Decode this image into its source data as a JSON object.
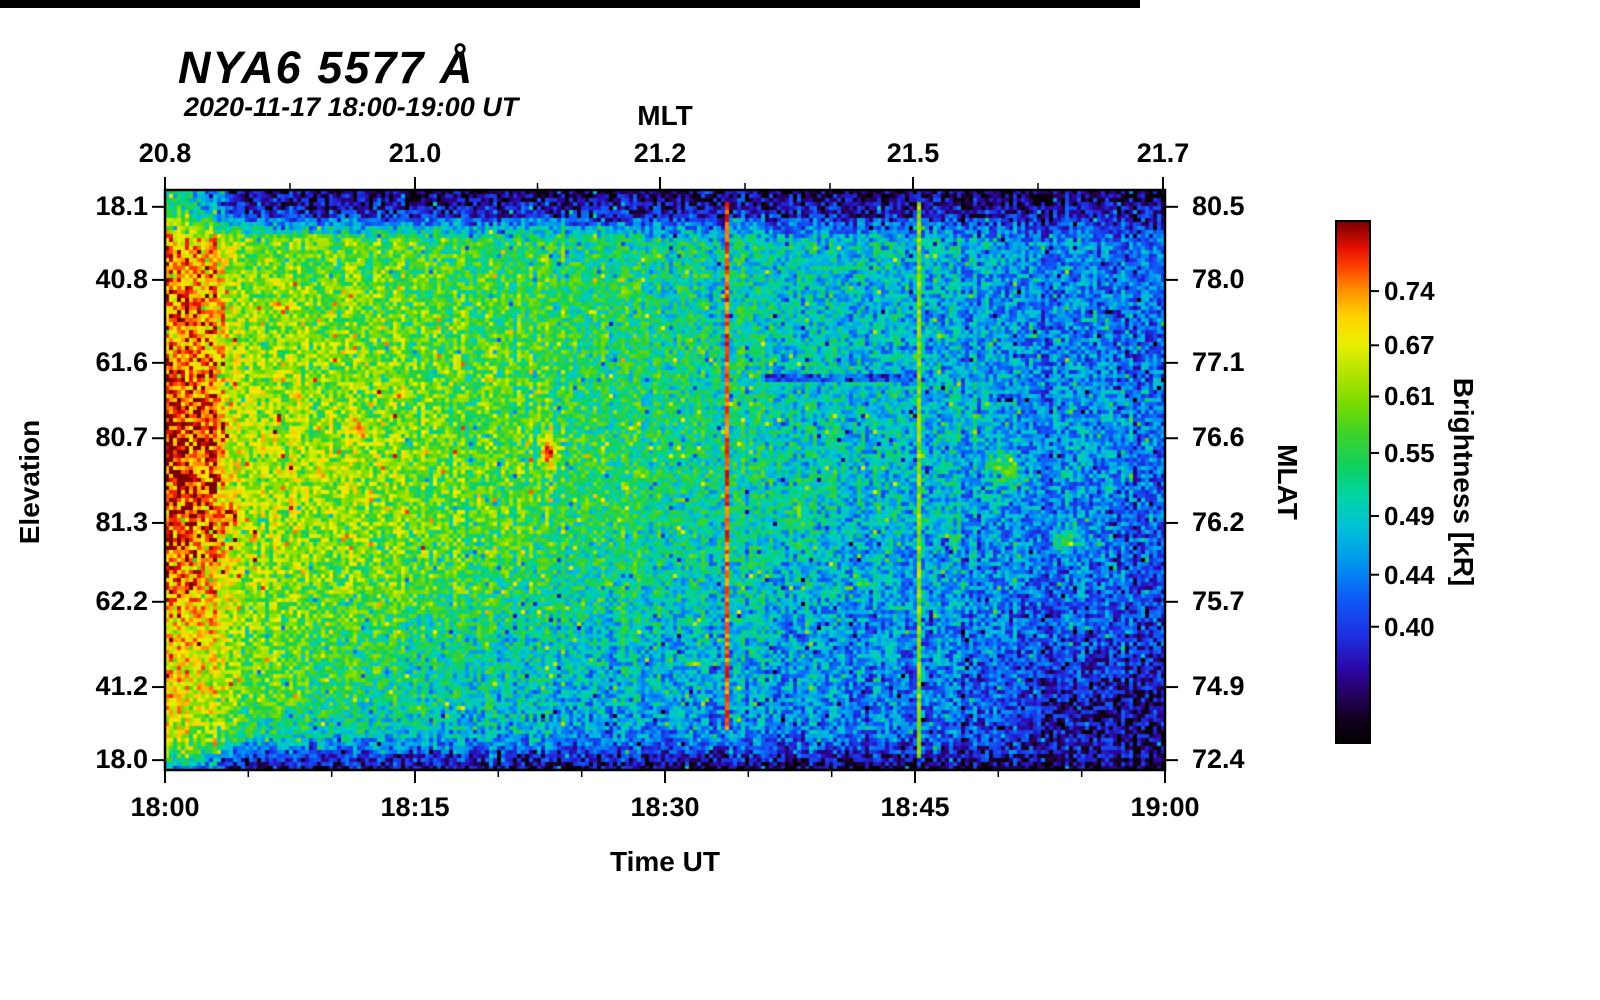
{
  "chart_data": {
    "type": "heatmap",
    "title": "NYA6 5577 Å",
    "subtitle": "2020-11-17 18:00-19:00 UT",
    "axes": {
      "top": {
        "label": "MLT",
        "ticks": [
          {
            "label": "20.8",
            "pos": 0.0
          },
          {
            "label": "21.0",
            "pos": 0.25
          },
          {
            "label": "21.2",
            "pos": 0.495
          },
          {
            "label": "21.5",
            "pos": 0.748
          },
          {
            "label": "21.7",
            "pos": 0.998
          }
        ],
        "minor": [
          0.125,
          0.3725,
          0.58,
          0.665,
          0.873
        ]
      },
      "bottom": {
        "label": "Time UT",
        "ticks": [
          {
            "label": "18:00",
            "pos": 0.0
          },
          {
            "label": "18:15",
            "pos": 0.25
          },
          {
            "label": "18:30",
            "pos": 0.5
          },
          {
            "label": "18:45",
            "pos": 0.75
          },
          {
            "label": "19:00",
            "pos": 1.0
          }
        ],
        "minor": [
          0.0833,
          0.1667,
          0.3333,
          0.4167,
          0.5833,
          0.6667,
          0.8333,
          0.9167
        ]
      },
      "left": {
        "label": "Elevation",
        "ticks": [
          {
            "label": "18.1",
            "pos": 0.029
          },
          {
            "label": "40.8",
            "pos": 0.155
          },
          {
            "label": "61.6",
            "pos": 0.298
          },
          {
            "label": "80.7",
            "pos": 0.428
          },
          {
            "label": "81.3",
            "pos": 0.574
          },
          {
            "label": "62.2",
            "pos": 0.71
          },
          {
            "label": "41.2",
            "pos": 0.857
          },
          {
            "label": "18.0",
            "pos": 0.983
          }
        ]
      },
      "right": {
        "label": "MLAT",
        "ticks": [
          {
            "label": "80.5",
            "pos": 0.029
          },
          {
            "label": "78.0",
            "pos": 0.155
          },
          {
            "label": "77.1",
            "pos": 0.298
          },
          {
            "label": "76.6",
            "pos": 0.428
          },
          {
            "label": "76.2",
            "pos": 0.574
          },
          {
            "label": "75.7",
            "pos": 0.71
          },
          {
            "label": "74.9",
            "pos": 0.857
          },
          {
            "label": "72.4",
            "pos": 0.983
          }
        ]
      }
    },
    "colorbar": {
      "label": "Brightness [kR]",
      "scale": "log",
      "vmin": 0.325,
      "vmax": 0.843,
      "ticks": [
        {
          "label": "0.74",
          "value": 0.74
        },
        {
          "label": "0.67",
          "value": 0.67
        },
        {
          "label": "0.61",
          "value": 0.61
        },
        {
          "label": "0.55",
          "value": 0.55
        },
        {
          "label": "0.49",
          "value": 0.49
        },
        {
          "label": "0.44",
          "value": 0.44
        },
        {
          "label": "0.40",
          "value": 0.4
        }
      ],
      "stops": [
        [
          0.0,
          "#050005"
        ],
        [
          0.04,
          "#10001c"
        ],
        [
          0.09,
          "#26005e"
        ],
        [
          0.14,
          "#2b07a8"
        ],
        [
          0.2,
          "#1e2ee0"
        ],
        [
          0.27,
          "#1058f8"
        ],
        [
          0.34,
          "#0092f0"
        ],
        [
          0.41,
          "#00c0d8"
        ],
        [
          0.47,
          "#00d4a8"
        ],
        [
          0.53,
          "#10d060"
        ],
        [
          0.59,
          "#3cd22c"
        ],
        [
          0.65,
          "#78dc00"
        ],
        [
          0.71,
          "#b4e400"
        ],
        [
          0.77,
          "#ecee00"
        ],
        [
          0.82,
          "#ffd200"
        ],
        [
          0.87,
          "#ff9000"
        ],
        [
          0.91,
          "#ff4800"
        ],
        [
          0.95,
          "#e81000"
        ],
        [
          1.0,
          "#7c0000"
        ]
      ]
    },
    "heatmap": {
      "value_units": "kR",
      "cols_pos": [
        0.0,
        0.05,
        0.068,
        0.1,
        0.15,
        0.2,
        0.25,
        0.3,
        0.35,
        0.4,
        0.45,
        0.5,
        0.55,
        0.6,
        0.65,
        0.7,
        0.75,
        0.8,
        0.85,
        0.9,
        0.94,
        0.97,
        1.0
      ],
      "rows_pos": [
        0.0,
        0.045,
        0.09,
        0.18,
        0.28,
        0.38,
        0.48,
        0.58,
        0.68,
        0.78,
        0.88,
        0.94,
        0.975,
        1.0
      ],
      "grid": [
        [
          0.5,
          0.44,
          0.37,
          0.36,
          0.355,
          0.355,
          0.35,
          0.35,
          0.35,
          0.35,
          0.35,
          0.35,
          0.35,
          0.35,
          0.35,
          0.345,
          0.345,
          0.345,
          0.345,
          0.34,
          0.34,
          0.34,
          0.34
        ],
        [
          0.58,
          0.48,
          0.41,
          0.4,
          0.4,
          0.4,
          0.4,
          0.395,
          0.395,
          0.395,
          0.39,
          0.39,
          0.39,
          0.39,
          0.39,
          0.39,
          0.385,
          0.385,
          0.385,
          0.38,
          0.38,
          0.38,
          0.38
        ],
        [
          0.72,
          0.7,
          0.62,
          0.6,
          0.59,
          0.58,
          0.57,
          0.56,
          0.55,
          0.54,
          0.53,
          0.52,
          0.51,
          0.5,
          0.5,
          0.49,
          0.48,
          0.47,
          0.46,
          0.45,
          0.43,
          0.42,
          0.41
        ],
        [
          0.75,
          0.73,
          0.62,
          0.61,
          0.6,
          0.59,
          0.58,
          0.57,
          0.56,
          0.55,
          0.54,
          0.52,
          0.51,
          0.5,
          0.49,
          0.48,
          0.47,
          0.46,
          0.45,
          0.44,
          0.43,
          0.43,
          0.42
        ],
        [
          0.76,
          0.74,
          0.63,
          0.62,
          0.61,
          0.6,
          0.59,
          0.58,
          0.57,
          0.55,
          0.54,
          0.53,
          0.52,
          0.5,
          0.49,
          0.48,
          0.47,
          0.46,
          0.45,
          0.44,
          0.43,
          0.42,
          0.42
        ],
        [
          0.78,
          0.76,
          0.64,
          0.63,
          0.62,
          0.61,
          0.6,
          0.58,
          0.57,
          0.56,
          0.54,
          0.53,
          0.52,
          0.51,
          0.5,
          0.49,
          0.48,
          0.47,
          0.46,
          0.45,
          0.44,
          0.43,
          0.42
        ],
        [
          0.8,
          0.78,
          0.65,
          0.64,
          0.63,
          0.62,
          0.6,
          0.59,
          0.58,
          0.56,
          0.55,
          0.53,
          0.52,
          0.51,
          0.5,
          0.49,
          0.48,
          0.47,
          0.46,
          0.45,
          0.44,
          0.43,
          0.42
        ],
        [
          0.78,
          0.76,
          0.64,
          0.63,
          0.62,
          0.61,
          0.6,
          0.58,
          0.57,
          0.55,
          0.54,
          0.52,
          0.51,
          0.5,
          0.49,
          0.48,
          0.47,
          0.46,
          0.45,
          0.44,
          0.43,
          0.42,
          0.41
        ],
        [
          0.74,
          0.72,
          0.63,
          0.62,
          0.6,
          0.59,
          0.57,
          0.56,
          0.54,
          0.53,
          0.52,
          0.51,
          0.5,
          0.49,
          0.48,
          0.47,
          0.46,
          0.45,
          0.44,
          0.43,
          0.42,
          0.41,
          0.4
        ],
        [
          0.7,
          0.68,
          0.62,
          0.6,
          0.57,
          0.55,
          0.53,
          0.52,
          0.51,
          0.5,
          0.49,
          0.48,
          0.47,
          0.47,
          0.46,
          0.45,
          0.44,
          0.43,
          0.42,
          0.41,
          0.4,
          0.4,
          0.39
        ],
        [
          0.68,
          0.66,
          0.6,
          0.58,
          0.55,
          0.53,
          0.51,
          0.5,
          0.49,
          0.48,
          0.47,
          0.47,
          0.46,
          0.45,
          0.45,
          0.44,
          0.43,
          0.42,
          0.41,
          0.38,
          0.37,
          0.365,
          0.36
        ],
        [
          0.64,
          0.62,
          0.55,
          0.52,
          0.5,
          0.49,
          0.48,
          0.47,
          0.47,
          0.46,
          0.46,
          0.45,
          0.45,
          0.44,
          0.44,
          0.43,
          0.42,
          0.41,
          0.4,
          0.37,
          0.365,
          0.36,
          0.355
        ],
        [
          0.56,
          0.5,
          0.42,
          0.41,
          0.4,
          0.4,
          0.4,
          0.4,
          0.395,
          0.395,
          0.395,
          0.39,
          0.39,
          0.39,
          0.39,
          0.385,
          0.385,
          0.38,
          0.38,
          0.375,
          0.37,
          0.365,
          0.36
        ],
        [
          0.46,
          0.43,
          0.38,
          0.37,
          0.365,
          0.36,
          0.36,
          0.36,
          0.36,
          0.355,
          0.355,
          0.355,
          0.35,
          0.35,
          0.35,
          0.35,
          0.345,
          0.345,
          0.34,
          0.34,
          0.335,
          0.335,
          0.33
        ]
      ],
      "blobs": [
        {
          "x": 0.025,
          "y": 0.5,
          "rx": 0.045,
          "ry": 0.22,
          "v": 0.82
        },
        {
          "x": 0.065,
          "y": 0.56,
          "rx": 0.02,
          "ry": 0.06,
          "v": 0.79
        },
        {
          "x": 0.09,
          "y": 0.6,
          "rx": 0.015,
          "ry": 0.04,
          "v": 0.74
        },
        {
          "x": 0.13,
          "y": 0.36,
          "rx": 0.035,
          "ry": 0.06,
          "v": 0.67
        },
        {
          "x": 0.155,
          "y": 0.48,
          "rx": 0.03,
          "ry": 0.1,
          "v": 0.68
        },
        {
          "x": 0.195,
          "y": 0.41,
          "rx": 0.028,
          "ry": 0.07,
          "v": 0.72
        },
        {
          "x": 0.385,
          "y": 0.45,
          "rx": 0.022,
          "ry": 0.07,
          "v": 0.74
        },
        {
          "x": 0.315,
          "y": 0.535,
          "rx": 0.008,
          "ry": 0.025,
          "v": 0.76
        },
        {
          "x": 0.53,
          "y": 0.815,
          "rx": 0.018,
          "ry": 0.013,
          "v": 0.64
        },
        {
          "x": 0.63,
          "y": 0.55,
          "rx": 0.07,
          "ry": 0.15,
          "v": 0.54
        },
        {
          "x": 0.84,
          "y": 0.48,
          "rx": 0.05,
          "ry": 0.09,
          "v": 0.55
        },
        {
          "x": 0.9,
          "y": 0.6,
          "rx": 0.04,
          "ry": 0.08,
          "v": 0.53
        }
      ],
      "streaks": [
        {
          "x": 0.562,
          "w": 0.002,
          "v": 0.77,
          "y0": 0.02,
          "y1": 0.93
        },
        {
          "x": 0.754,
          "w": 0.002,
          "v": 0.62,
          "y0": 0.02,
          "y1": 0.98
        }
      ],
      "dark_streaks": [
        {
          "y": 0.325,
          "x0": 0.6,
          "x1": 0.76,
          "h": 0.007,
          "v": 0.41
        }
      ],
      "noise": 0.13,
      "col_noise": 0.045,
      "seed": 1711
    }
  }
}
